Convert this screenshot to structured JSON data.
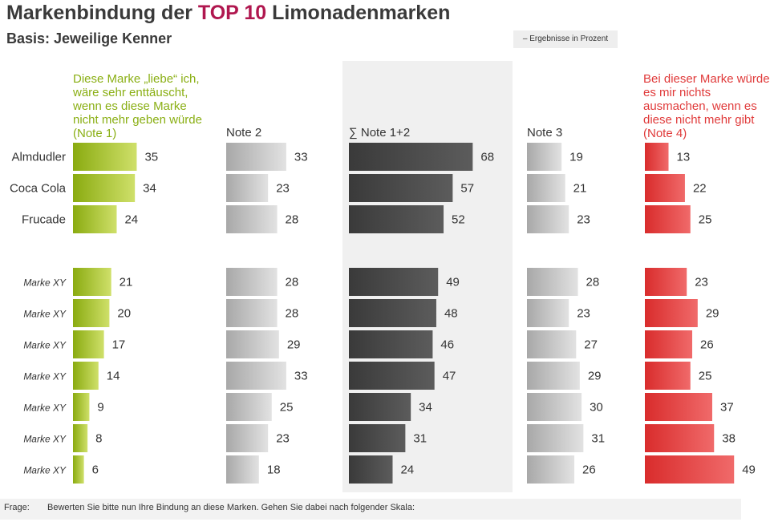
{
  "title": {
    "prefix": "Markenbindung der ",
    "highlight": "TOP 10",
    "suffix": " Limonadenmarken"
  },
  "subtitle": "Basis: Jeweilige Kenner",
  "note": "– Ergebnisse in Prozent",
  "footer": {
    "label": "Frage:",
    "text": "Bewerten Sie bitte nun Ihre Bindung an diese Marken. Gehen Sie dabei nach folgender Skala:"
  },
  "colors": {
    "green": "#9fbf1c",
    "gray": "#b8b8b8",
    "dark": "#454545",
    "red": "#e03a3a",
    "highlight_bg": "#f0f0f0"
  },
  "chart_data": {
    "type": "bar",
    "orientation": "horizontal",
    "unit": "Prozent",
    "categories": [
      "Almdudler",
      "Coca Cola",
      "Frucade",
      "Marke XY",
      "Marke XY",
      "Marke XY",
      "Marke XY",
      "Marke XY",
      "Marke XY",
      "Marke XY"
    ],
    "series": [
      {
        "name": "Diese Marke „liebe“ ich, wäre sehr enttäuscht, wenn es diese Marke nicht mehr geben würde (Note 1)",
        "values": [
          35,
          34,
          24,
          21,
          20,
          17,
          14,
          9,
          8,
          6
        ]
      },
      {
        "name": "Note 2",
        "values": [
          33,
          23,
          28,
          28,
          28,
          29,
          33,
          25,
          23,
          18
        ]
      },
      {
        "name": "∑ Note 1+2",
        "values": [
          68,
          57,
          52,
          49,
          48,
          46,
          47,
          34,
          31,
          24
        ]
      },
      {
        "name": "Note 3",
        "values": [
          19,
          21,
          23,
          28,
          23,
          27,
          29,
          30,
          31,
          26
        ]
      },
      {
        "name": "Bei dieser Marke würde es mir nichts ausmachen, wenn es diese nicht mehr gibt (Note 4)",
        "values": [
          13,
          22,
          25,
          23,
          29,
          26,
          25,
          37,
          38,
          49
        ]
      }
    ]
  }
}
